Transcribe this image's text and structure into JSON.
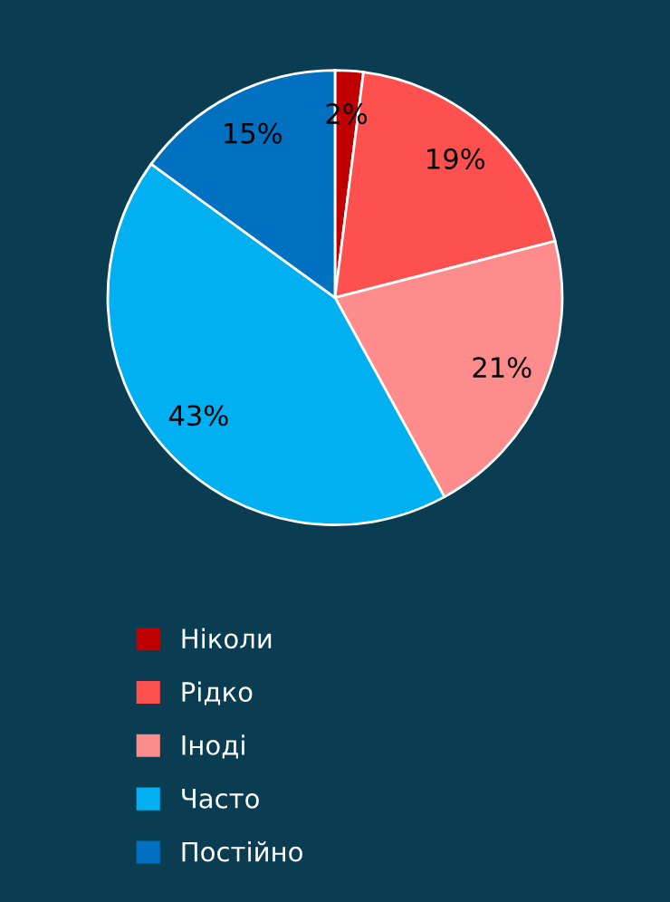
{
  "chart_data": {
    "type": "pie",
    "categories": [
      "Ніколи",
      "Рідко",
      "Іноді",
      "Часто",
      "Постійно"
    ],
    "values": [
      2,
      19,
      21,
      43,
      15
    ],
    "colors": [
      "#c00000",
      "#ff5050",
      "#ff8c8c",
      "#00b0f0",
      "#0070c0"
    ],
    "value_labels": [
      "2%",
      "19%",
      "21%",
      "43%",
      "15%"
    ],
    "legend": "bottom"
  }
}
